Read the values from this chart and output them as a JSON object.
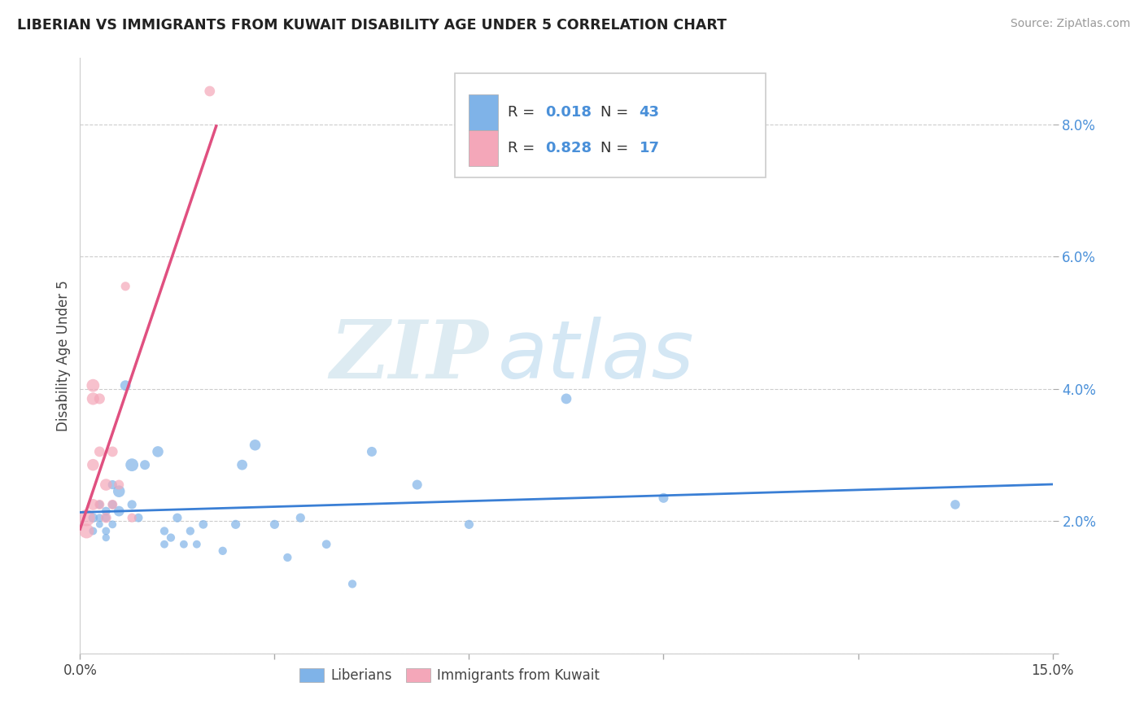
{
  "title": "LIBERIAN VS IMMIGRANTS FROM KUWAIT DISABILITY AGE UNDER 5 CORRELATION CHART",
  "source": "Source: ZipAtlas.com",
  "ylabel": "Disability Age Under 5",
  "xlim": [
    0.0,
    0.15
  ],
  "ylim": [
    0.0,
    0.09
  ],
  "xtick_positions": [
    0.0,
    0.03,
    0.06,
    0.09,
    0.12,
    0.15
  ],
  "ytick_positions": [
    0.0,
    0.02,
    0.04,
    0.06,
    0.08
  ],
  "xticklabels": [
    "0.0%",
    "",
    "",
    "",
    "",
    "15.0%"
  ],
  "yticklabels": [
    "",
    "2.0%",
    "4.0%",
    "6.0%",
    "8.0%"
  ],
  "liberian_R": 0.018,
  "liberian_N": 43,
  "kuwait_R": 0.828,
  "kuwait_N": 17,
  "liberian_color": "#7fb3e8",
  "kuwait_color": "#f4a7b9",
  "liberian_line_color": "#3a7fd5",
  "kuwait_line_color": "#e05080",
  "watermark_ZIP": "ZIP",
  "watermark_atlas": "atlas",
  "liberian_x": [
    0.002,
    0.002,
    0.003,
    0.003,
    0.003,
    0.004,
    0.004,
    0.004,
    0.004,
    0.005,
    0.005,
    0.005,
    0.006,
    0.006,
    0.007,
    0.008,
    0.008,
    0.009,
    0.01,
    0.012,
    0.013,
    0.013,
    0.014,
    0.015,
    0.016,
    0.017,
    0.018,
    0.019,
    0.022,
    0.024,
    0.025,
    0.027,
    0.03,
    0.032,
    0.034,
    0.038,
    0.042,
    0.045,
    0.052,
    0.06,
    0.075,
    0.09,
    0.135
  ],
  "liberian_y": [
    0.0205,
    0.0185,
    0.0225,
    0.0205,
    0.0195,
    0.0215,
    0.0205,
    0.0185,
    0.0175,
    0.0255,
    0.0225,
    0.0195,
    0.0245,
    0.0215,
    0.0405,
    0.0285,
    0.0225,
    0.0205,
    0.0285,
    0.0305,
    0.0185,
    0.0165,
    0.0175,
    0.0205,
    0.0165,
    0.0185,
    0.0165,
    0.0195,
    0.0155,
    0.0195,
    0.0285,
    0.0315,
    0.0195,
    0.0145,
    0.0205,
    0.0165,
    0.0105,
    0.0305,
    0.0255,
    0.0195,
    0.0385,
    0.0235,
    0.0225
  ],
  "liberian_sizes": [
    70,
    50,
    55,
    50,
    40,
    60,
    55,
    50,
    45,
    65,
    60,
    50,
    110,
    85,
    85,
    130,
    65,
    60,
    75,
    95,
    55,
    50,
    55,
    65,
    50,
    55,
    50,
    60,
    55,
    65,
    85,
    95,
    65,
    55,
    65,
    60,
    55,
    75,
    75,
    65,
    85,
    75,
    70
  ],
  "kuwait_x": [
    0.001,
    0.001,
    0.002,
    0.002,
    0.002,
    0.002,
    0.003,
    0.003,
    0.003,
    0.004,
    0.004,
    0.005,
    0.005,
    0.006,
    0.007,
    0.008,
    0.02
  ],
  "kuwait_y": [
    0.0205,
    0.0185,
    0.0405,
    0.0385,
    0.0285,
    0.0225,
    0.0385,
    0.0305,
    0.0225,
    0.0255,
    0.0205,
    0.0305,
    0.0225,
    0.0255,
    0.0555,
    0.0205,
    0.085
  ],
  "kuwait_sizes": [
    220,
    170,
    130,
    120,
    110,
    100,
    90,
    85,
    75,
    110,
    85,
    85,
    75,
    75,
    65,
    65,
    85
  ]
}
